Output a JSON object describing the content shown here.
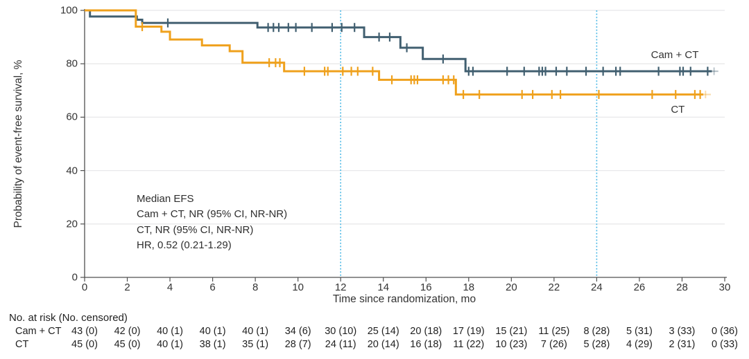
{
  "colors": {
    "camct_line": "#415f70",
    "ct_line": "#efa11d",
    "reference_line": "#4db9e6",
    "grid_line": "#e8e8ea",
    "axis_line": "#4f4f4f",
    "text": "#333333"
  },
  "chart_data": {
    "type": "line",
    "subtype": "kaplan-meier-step",
    "title": "",
    "xlabel": "Time since randomization, mo",
    "ylabel": "Probability of event-free survival, %",
    "xlim": [
      0,
      30
    ],
    "ylim": [
      0,
      100
    ],
    "xticks": [
      0,
      2,
      4,
      6,
      8,
      10,
      12,
      14,
      16,
      18,
      20,
      22,
      24,
      26,
      28,
      30
    ],
    "yticks": [
      0,
      20,
      40,
      60,
      80,
      100
    ],
    "grid": true,
    "reference_lines_x": [
      12,
      24
    ],
    "annotation": [
      "Median EFS",
      "Cam + CT, NR (95% CI, NR-NR)",
      "CT, NR (95% CI, NR-NR)",
      "HR, 0.52 (0.21-1.29)"
    ],
    "series": [
      {
        "name": "Cam + CT",
        "color_key": "camct_line",
        "steps": [
          [
            0,
            100
          ],
          [
            0.25,
            97.7
          ],
          [
            2.45,
            96.5
          ],
          [
            2.7,
            95.3
          ],
          [
            8.1,
            93.6
          ],
          [
            13.1,
            90.0
          ],
          [
            14.8,
            86.0
          ],
          [
            15.85,
            81.8
          ],
          [
            17.85,
            77.2
          ]
        ],
        "solid_end_t": 29.4,
        "faint_end_t": 29.7,
        "faint_censor_t": 29.5,
        "censor_marks": [
          [
            3.9,
            95.3
          ],
          [
            8.6,
            93.6
          ],
          [
            8.85,
            93.6
          ],
          [
            9.1,
            93.6
          ],
          [
            9.55,
            93.6
          ],
          [
            9.9,
            93.6
          ],
          [
            10.65,
            93.6
          ],
          [
            11.6,
            93.6
          ],
          [
            12.05,
            93.6
          ],
          [
            12.65,
            93.6
          ],
          [
            13.8,
            90.0
          ],
          [
            14.3,
            90.0
          ],
          [
            15.1,
            86.0
          ],
          [
            16.8,
            81.8
          ],
          [
            18.0,
            77.2
          ],
          [
            18.2,
            77.2
          ],
          [
            19.8,
            77.2
          ],
          [
            20.6,
            77.2
          ],
          [
            21.3,
            77.2
          ],
          [
            21.45,
            77.2
          ],
          [
            21.6,
            77.2
          ],
          [
            22.1,
            77.2
          ],
          [
            22.6,
            77.2
          ],
          [
            23.5,
            77.2
          ],
          [
            24.3,
            77.2
          ],
          [
            24.9,
            77.2
          ],
          [
            25.1,
            77.2
          ],
          [
            26.9,
            77.2
          ],
          [
            27.9,
            77.2
          ],
          [
            28.05,
            77.2
          ],
          [
            28.4,
            77.2
          ],
          [
            29.2,
            77.2
          ]
        ],
        "label_x_mo": 27.55,
        "label_y_pct": 83.5
      },
      {
        "name": "CT",
        "color_key": "ct_line",
        "steps": [
          [
            0,
            100
          ],
          [
            2.4,
            93.9
          ],
          [
            3.6,
            92.0
          ],
          [
            4.0,
            89.1
          ],
          [
            5.5,
            86.9
          ],
          [
            6.8,
            84.7
          ],
          [
            7.4,
            80.4
          ],
          [
            9.35,
            77.2
          ],
          [
            13.8,
            74.0
          ],
          [
            17.4,
            68.5
          ]
        ],
        "solid_end_t": 29.0,
        "faint_end_t": 29.35,
        "faint_censor_t": 29.1,
        "censor_marks": [
          [
            2.7,
            93.9
          ],
          [
            8.65,
            80.4
          ],
          [
            8.95,
            80.4
          ],
          [
            9.15,
            80.4
          ],
          [
            10.3,
            77.2
          ],
          [
            11.25,
            77.2
          ],
          [
            11.4,
            77.2
          ],
          [
            12.1,
            77.2
          ],
          [
            12.5,
            77.2
          ],
          [
            12.8,
            77.2
          ],
          [
            13.5,
            77.2
          ],
          [
            14.4,
            74.0
          ],
          [
            15.3,
            74.0
          ],
          [
            15.45,
            74.0
          ],
          [
            15.6,
            74.0
          ],
          [
            16.8,
            74.0
          ],
          [
            17.05,
            74.0
          ],
          [
            17.3,
            74.0
          ],
          [
            17.75,
            68.5
          ],
          [
            18.5,
            68.5
          ],
          [
            20.5,
            68.5
          ],
          [
            21.0,
            68.5
          ],
          [
            21.9,
            68.5
          ],
          [
            22.3,
            68.5
          ],
          [
            24.1,
            68.5
          ],
          [
            26.6,
            68.5
          ],
          [
            27.7,
            68.5
          ],
          [
            28.6,
            68.5
          ],
          [
            28.85,
            68.5
          ]
        ],
        "label_x_mo": 27.8,
        "label_y_pct": 63.0
      }
    ]
  },
  "risk_table": {
    "header": "No. at risk (No. censored)",
    "times": [
      0,
      2,
      4,
      6,
      8,
      10,
      12,
      14,
      16,
      18,
      20,
      22,
      24,
      26,
      28,
      30
    ],
    "rows": [
      {
        "label": "Cam + CT",
        "values": [
          "43 (0)",
          "42 (0)",
          "40 (1)",
          "40 (1)",
          "40 (1)",
          "34 (6)",
          "30 (10)",
          "25 (14)",
          "20 (18)",
          "17 (19)",
          "15 (21)",
          "11 (25)",
          "8 (28)",
          "5 (31)",
          "3 (33)",
          "0 (36)"
        ]
      },
      {
        "label": "CT",
        "values": [
          "45 (0)",
          "45 (0)",
          "40 (1)",
          "38 (1)",
          "35 (1)",
          "28 (7)",
          "24 (11)",
          "20 (14)",
          "16 (18)",
          "11 (22)",
          "10 (23)",
          "7 (26)",
          "5 (28)",
          "4 (29)",
          "2 (31)",
          "0 (33)"
        ]
      }
    ]
  }
}
